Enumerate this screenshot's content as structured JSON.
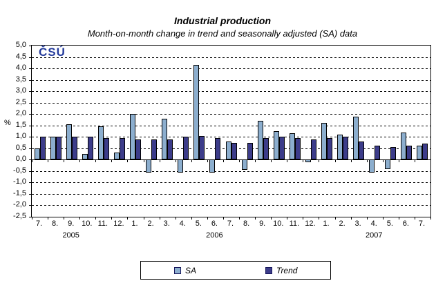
{
  "header": {
    "title": "Industrial production",
    "subtitle": "Month-on-month change in trend and seasonally adjusted (SA) data"
  },
  "logo": {
    "text": "ČSÚ",
    "color": "#233A9B"
  },
  "chart_data": {
    "type": "bar",
    "title": "Industrial production",
    "subtitle": "Month-on-month change in trend and seasonally adjusted (SA) data",
    "xlabel": "",
    "ylabel": "%",
    "ylim": [
      -2.5,
      5.0
    ],
    "ytick_step": 0.5,
    "decimal_separator": ",",
    "grid": "horizontal-dashed",
    "categories": [
      "7.",
      "8.",
      "9.",
      "10.",
      "11.",
      "12.",
      "1.",
      "2.",
      "3.",
      "4.",
      "5.",
      "6.",
      "7.",
      "8.",
      "9.",
      "10.",
      "11.",
      "12.",
      "1.",
      "2.",
      "3.",
      "4.",
      "5.",
      "6.",
      "7."
    ],
    "year_labels": [
      {
        "label": "2005",
        "index": 2
      },
      {
        "label": "2006",
        "index": 11
      },
      {
        "label": "2007",
        "index": 21
      }
    ],
    "series": [
      {
        "name": "SA",
        "color": "#8CAECE",
        "values": [
          0.5,
          1.0,
          1.55,
          0.25,
          1.45,
          0.3,
          2.0,
          -0.55,
          1.8,
          -0.55,
          4.15,
          -0.55,
          0.8,
          -0.45,
          1.7,
          1.25,
          1.15,
          -0.1,
          1.6,
          1.1,
          1.9,
          -0.55,
          -0.4,
          1.2,
          0.6
        ]
      },
      {
        "name": "Trend",
        "color": "#3C3C8A",
        "values": [
          1.0,
          1.0,
          1.0,
          1.0,
          0.95,
          0.95,
          0.9,
          0.9,
          0.9,
          1.0,
          1.05,
          0.95,
          0.75,
          0.75,
          0.95,
          1.0,
          0.95,
          0.9,
          0.95,
          1.0,
          0.8,
          0.6,
          0.55,
          0.6,
          0.7
        ]
      }
    ],
    "legend": {
      "position": "bottom",
      "entries": [
        "SA",
        "Trend"
      ]
    }
  }
}
